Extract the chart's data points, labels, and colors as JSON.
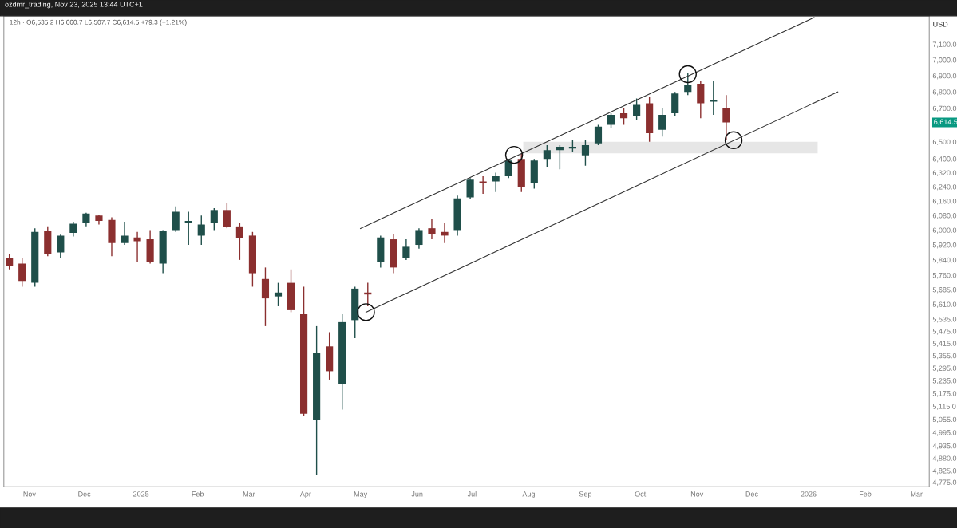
{
  "chart_data": {
    "type": "candlestick",
    "title": "ozdmr_trading, Nov 23, 2025 13:44 UTC+1",
    "subtitle": "12h · O6,535.2 H6,660.7 L6,507.7 C6,614.5 +79.3 (+1.21%)",
    "ylabel": "USD",
    "log": "y",
    "grid": false,
    "legend": false,
    "xlim": [
      "2024-10-18",
      "2026-03-08"
    ],
    "xticks": [
      {
        "value": "2024-11-01",
        "label": "Nov"
      },
      {
        "value": "2024-12-01",
        "label": "Dec"
      },
      {
        "value": "2025-01-01",
        "label": "2025"
      },
      {
        "value": "2025-02-01",
        "label": "Feb"
      },
      {
        "value": "2025-03-01",
        "label": "Mar"
      },
      {
        "value": "2025-04-01",
        "label": "Apr"
      },
      {
        "value": "2025-05-01",
        "label": "May"
      },
      {
        "value": "2025-06-01",
        "label": "Jun"
      },
      {
        "value": "2025-07-01",
        "label": "Jul"
      },
      {
        "value": "2025-08-01",
        "label": "Aug"
      },
      {
        "value": "2025-09-01",
        "label": "Sep"
      },
      {
        "value": "2025-10-01",
        "label": "Oct"
      },
      {
        "value": "2025-11-01",
        "label": "Nov"
      },
      {
        "value": "2025-12-01",
        "label": "Dec"
      },
      {
        "value": "2026-01-01",
        "label": "2026"
      },
      {
        "value": "2026-02-01",
        "label": "Feb"
      },
      {
        "value": "2026-03-01",
        "label": "Mar"
      }
    ],
    "ylim": [
      4755,
      7285
    ],
    "yticks": [
      {
        "value": 4775,
        "label": "4,775.0"
      },
      {
        "value": 4825,
        "label": "4,825.0"
      },
      {
        "value": 4880,
        "label": "4,880.0"
      },
      {
        "value": 4935,
        "label": "4,935.0"
      },
      {
        "value": 4995,
        "label": "4,995.0"
      },
      {
        "value": 5055,
        "label": "5,055.0"
      },
      {
        "value": 5115,
        "label": "5,115.0"
      },
      {
        "value": 5175,
        "label": "5,175.0"
      },
      {
        "value": 5235,
        "label": "5,235.0"
      },
      {
        "value": 5295,
        "label": "5,295.0"
      },
      {
        "value": 5355,
        "label": "5,355.0"
      },
      {
        "value": 5415,
        "label": "5,415.0"
      },
      {
        "value": 5475,
        "label": "5,475.0"
      },
      {
        "value": 5535,
        "label": "5,535.0"
      },
      {
        "value": 5610,
        "label": "5,610.0"
      },
      {
        "value": 5685,
        "label": "5,685.0"
      },
      {
        "value": 5760,
        "label": "5,760.0"
      },
      {
        "value": 5840,
        "label": "5,840.0"
      },
      {
        "value": 5920,
        "label": "5,920.0"
      },
      {
        "value": 6000,
        "label": "6,000.0"
      },
      {
        "value": 6080,
        "label": "6,080.0"
      },
      {
        "value": 6160,
        "label": "6,160.0"
      },
      {
        "value": 6240,
        "label": "6,240.0"
      },
      {
        "value": 6320,
        "label": "6,320.0"
      },
      {
        "value": 6400,
        "label": "6,400.0"
      },
      {
        "value": 6500,
        "label": "6,500.0"
      },
      {
        "value": 6700,
        "label": "6,700.0"
      },
      {
        "value": 6800,
        "label": "6,800.0"
      },
      {
        "value": 6900,
        "label": "6,900.0"
      },
      {
        "value": 7000,
        "label": "7,000.0"
      },
      {
        "value": 7100,
        "label": "7,100.0"
      }
    ],
    "annotations": [
      "6,614.5"
    ],
    "series": [
      {
        "type": "area",
        "x": [
          "2025-07-29",
          "2026-01-06"
        ],
        "values": [
          null,
          null
        ],
        "lower": [
          6432,
          6432
        ],
        "upper": [
          6500,
          6500
        ],
        "color": "#e6e6e6"
      },
      {
        "x": [
          "2024-10-21",
          "2024-10-28",
          "2024-11-04",
          "2024-11-11",
          "2024-11-18",
          "2024-11-25",
          "2024-12-02",
          "2024-12-09",
          "2024-12-16",
          "2024-12-23",
          "2024-12-30",
          "2025-01-06",
          "2025-01-13",
          "2025-01-20",
          "2025-01-27",
          "2025-02-03",
          "2025-02-10",
          "2025-02-17",
          "2025-02-24",
          "2025-03-03",
          "2025-03-10",
          "2025-03-17",
          "2025-03-24",
          "2025-03-31",
          "2025-04-07",
          "2025-04-14",
          "2025-04-21",
          "2025-04-28",
          "2025-05-05",
          "2025-05-12",
          "2025-05-19",
          "2025-05-26",
          "2025-06-02",
          "2025-06-09",
          "2025-06-16",
          "2025-06-23",
          "2025-06-30",
          "2025-07-07",
          "2025-07-14",
          "2025-07-21",
          "2025-07-28",
          "2025-08-04",
          "2025-08-11",
          "2025-08-18",
          "2025-08-25",
          "2025-09-01",
          "2025-09-08",
          "2025-09-15",
          "2025-09-22",
          "2025-09-29",
          "2025-10-06",
          "2025-10-13",
          "2025-10-20",
          "2025-10-27",
          "2025-11-03",
          "2025-11-10",
          "2025-11-17"
        ],
        "ohlc": [
          [
            5850,
            5870,
            5790,
            5810
          ],
          [
            5820,
            5850,
            5700,
            5730
          ],
          [
            5720,
            6010,
            5700,
            5990
          ],
          [
            5995,
            6020,
            5860,
            5870
          ],
          [
            5880,
            5975,
            5850,
            5970
          ],
          [
            5985,
            6045,
            5965,
            6035
          ],
          [
            6040,
            6095,
            6020,
            6090
          ],
          [
            6080,
            6085,
            6030,
            6050
          ],
          [
            6055,
            6070,
            5860,
            5930
          ],
          [
            5930,
            6045,
            5920,
            5970
          ],
          [
            5960,
            5990,
            5830,
            5940
          ],
          [
            5950,
            6000,
            5820,
            5830
          ],
          [
            5820,
            6000,
            5770,
            5995
          ],
          [
            6000,
            6130,
            5990,
            6100
          ],
          [
            6040,
            6100,
            5920,
            6050
          ],
          [
            5970,
            6080,
            5920,
            6030
          ],
          [
            6040,
            6120,
            6000,
            6110
          ],
          [
            6110,
            6150,
            6010,
            6015
          ],
          [
            6020,
            6040,
            5840,
            5955
          ],
          [
            5970,
            5990,
            5700,
            5770
          ],
          [
            5740,
            5800,
            5500,
            5640
          ],
          [
            5650,
            5720,
            5600,
            5670
          ],
          [
            5720,
            5790,
            5570,
            5580
          ],
          [
            5560,
            5700,
            5070,
            5080
          ],
          [
            5050,
            5500,
            4805,
            5370
          ],
          [
            5400,
            5470,
            5240,
            5280
          ],
          [
            5220,
            5560,
            5100,
            5520
          ],
          [
            5530,
            5700,
            5440,
            5690
          ],
          [
            5670,
            5720,
            5600,
            5660
          ],
          [
            5830,
            5970,
            5800,
            5960
          ],
          [
            5950,
            5980,
            5770,
            5800
          ],
          [
            5850,
            5950,
            5840,
            5910
          ],
          [
            5920,
            6010,
            5900,
            6000
          ],
          [
            6010,
            6060,
            5950,
            5980
          ],
          [
            5990,
            6040,
            5930,
            5970
          ],
          [
            6000,
            6190,
            5970,
            6175
          ],
          [
            6180,
            6290,
            6170,
            6280
          ],
          [
            6270,
            6300,
            6200,
            6260
          ],
          [
            6270,
            6320,
            6210,
            6300
          ],
          [
            6300,
            6400,
            6290,
            6390
          ],
          [
            6400,
            6430,
            6210,
            6240
          ],
          [
            6260,
            6400,
            6230,
            6390
          ],
          [
            6400,
            6480,
            6350,
            6450
          ],
          [
            6450,
            6480,
            6340,
            6470
          ],
          [
            6460,
            6510,
            6440,
            6470
          ],
          [
            6420,
            6510,
            6360,
            6480
          ],
          [
            6490,
            6600,
            6480,
            6590
          ],
          [
            6600,
            6670,
            6580,
            6660
          ],
          [
            6670,
            6700,
            6600,
            6640
          ],
          [
            6650,
            6760,
            6630,
            6720
          ],
          [
            6730,
            6770,
            6500,
            6550
          ],
          [
            6570,
            6700,
            6530,
            6660
          ],
          [
            6670,
            6800,
            6650,
            6790
          ],
          [
            6800,
            6920,
            6780,
            6840
          ],
          [
            6850,
            6870,
            6640,
            6730
          ],
          [
            6740,
            6870,
            6660,
            6750
          ],
          [
            6700,
            6780,
            6507.7,
            6614.5
          ]
        ],
        "colors": [
          "#8b2f2f",
          "#8b2f2f",
          "#1f4f4a",
          "#8b2f2f",
          "#1f4f4a",
          "#1f4f4a",
          "#1f4f4a",
          "#8b2f2f",
          "#8b2f2f",
          "#1f4f4a",
          "#8b2f2f",
          "#8b2f2f",
          "#1f4f4a",
          "#1f4f4a",
          "#1f4f4a",
          "#1f4f4a",
          "#1f4f4a",
          "#8b2f2f",
          "#8b2f2f",
          "#8b2f2f",
          "#8b2f2f",
          "#1f4f4a",
          "#8b2f2f",
          "#8b2f2f",
          "#1f4f4a",
          "#8b2f2f",
          "#1f4f4a",
          "#1f4f4a",
          "#8b2f2f",
          "#1f4f4a",
          "#8b2f2f",
          "#1f4f4a",
          "#1f4f4a",
          "#8b2f2f",
          "#8b2f2f",
          "#1f4f4a",
          "#1f4f4a",
          "#8b2f2f",
          "#1f4f4a",
          "#1f4f4a",
          "#8b2f2f",
          "#1f4f4a",
          "#1f4f4a",
          "#1f4f4a",
          "#1f4f4a",
          "#1f4f4a",
          "#1f4f4a",
          "#1f4f4a",
          "#8b2f2f",
          "#1f4f4a",
          "#8b2f2f",
          "#1f4f4a",
          "#1f4f4a",
          "#1f4f4a",
          "#8b2f2f",
          "#1f4f4a",
          "#8b2f2f"
        ]
      },
      {
        "type": "line",
        "x": [
          "2025-05-01",
          "2026-01-04"
        ],
        "values": [
          6009,
          7274
        ],
        "color": "#333333"
      },
      {
        "type": "line",
        "x": [
          "2025-05-04",
          "2026-01-17"
        ],
        "values": [
          5570,
          6800
        ],
        "color": "#333333"
      },
      {
        "type": "scatter",
        "marker": "circle",
        "x": [
          "2025-05-04",
          "2025-07-24",
          "2025-10-27",
          "2025-11-21"
        ],
        "values": [
          5570,
          6423,
          6910,
          6509
        ],
        "color": "#111111"
      }
    ]
  }
}
